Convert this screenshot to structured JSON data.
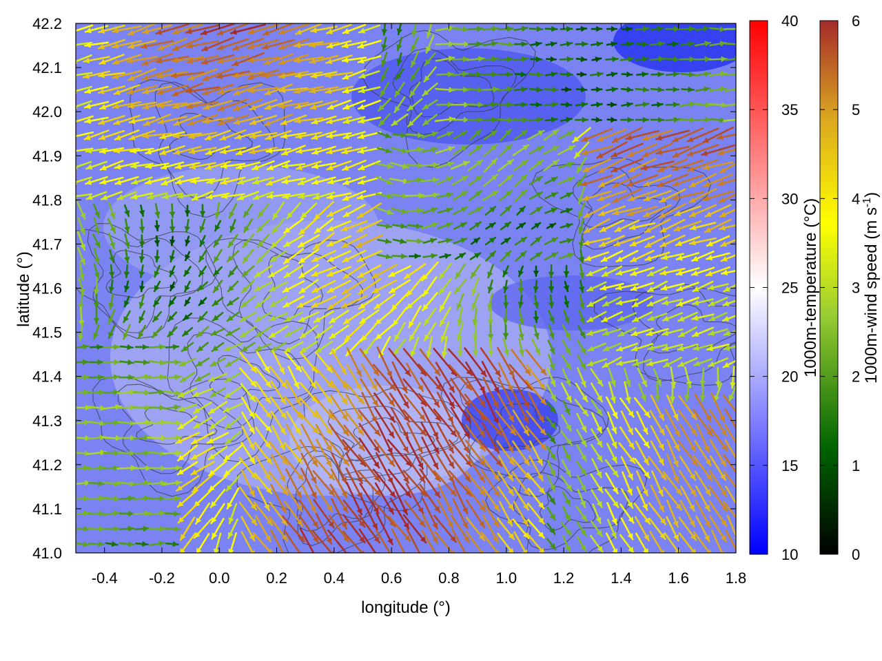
{
  "chart_data": {
    "type": "vector-field",
    "xlabel": "longitude (°)",
    "ylabel": "latitude (°)",
    "xlim": [
      -0.5,
      1.8
    ],
    "ylim": [
      41.0,
      42.2
    ],
    "xticks": [
      -0.4,
      -0.2,
      0.0,
      0.2,
      0.4,
      0.6,
      0.8,
      1.0,
      1.2,
      1.4,
      1.6,
      1.8
    ],
    "xtick_labels": [
      "-0.4",
      "-0.2",
      "0.0",
      "0.2",
      "0.4",
      "0.6",
      "0.8",
      "1.0",
      "1.2",
      "1.4",
      "1.6",
      "1.8"
    ],
    "yticks": [
      41.0,
      41.1,
      41.2,
      41.3,
      41.4,
      41.5,
      41.6,
      41.7,
      41.8,
      41.9,
      42.0,
      42.1,
      42.2
    ],
    "ytick_labels": [
      "41.0",
      "41.1",
      "41.2",
      "41.3",
      "41.4",
      "41.5",
      "41.6",
      "41.7",
      "41.8",
      "41.9",
      "42.0",
      "42.1",
      "42.2"
    ],
    "background_field": {
      "label": "1000m-temperature (°C)",
      "range": [
        10,
        40
      ],
      "ticks": [
        10,
        15,
        20,
        25,
        30,
        35,
        40
      ],
      "tick_labels": [
        "10",
        "15",
        "20",
        "25",
        "30",
        "35",
        "40"
      ],
      "colors": [
        "#0000ff",
        "#ffffff",
        "#ff0000"
      ]
    },
    "vector_field": {
      "label_main": "1000m-wind speed (m s",
      "label_sup": "-1",
      "label_end": ")",
      "range": [
        0,
        6
      ],
      "ticks": [
        0,
        1,
        2,
        3,
        4,
        5,
        6
      ],
      "tick_labels": [
        "0",
        "1",
        "2",
        "3",
        "4",
        "5",
        "6"
      ],
      "colors": [
        "#000000",
        "#006400",
        "#9acd32",
        "#ffff00",
        "#daa520",
        "#a52a2a"
      ]
    },
    "contours": true,
    "grid": false
  }
}
